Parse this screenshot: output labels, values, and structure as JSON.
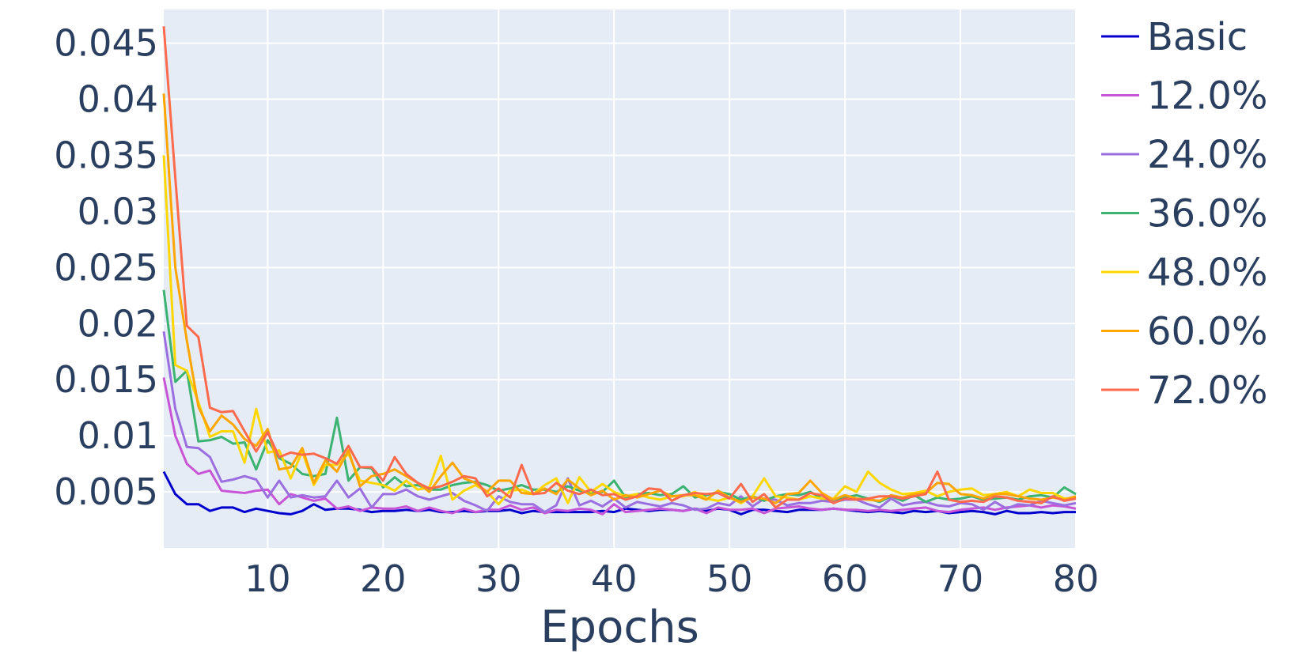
{
  "chart_data": {
    "type": "line",
    "title": "",
    "xlabel": "Epochs",
    "ylabel": "",
    "xlim": [
      1,
      80
    ],
    "ylim": [
      0.0,
      0.048
    ],
    "grid": true,
    "legend_position": "right",
    "background": "#e5ecf6",
    "grid_color": "#ffffff",
    "text_color": "#2a3f5f",
    "x_ticks": [
      10,
      20,
      30,
      40,
      50,
      60,
      70,
      80
    ],
    "x_tick_labels": [
      "10",
      "20",
      "30",
      "40",
      "50",
      "60",
      "70",
      "80"
    ],
    "y_ticks": [
      0.005,
      0.01,
      0.015,
      0.02,
      0.025,
      0.03,
      0.035,
      0.04,
      0.045
    ],
    "y_tick_labels": [
      "0.005",
      "0.01",
      "0.015",
      "0.02",
      "0.025",
      "0.03",
      "0.035",
      "0.04",
      "0.045"
    ],
    "x": [
      1,
      2,
      3,
      4,
      5,
      6,
      7,
      8,
      9,
      10,
      11,
      12,
      13,
      14,
      15,
      16,
      17,
      18,
      19,
      20,
      21,
      22,
      23,
      24,
      25,
      26,
      27,
      28,
      29,
      30,
      31,
      32,
      33,
      34,
      35,
      36,
      37,
      38,
      39,
      40,
      41,
      42,
      43,
      44,
      45,
      46,
      47,
      48,
      49,
      50,
      51,
      52,
      53,
      54,
      55,
      56,
      57,
      58,
      59,
      60,
      61,
      62,
      63,
      64,
      65,
      66,
      67,
      68,
      69,
      70,
      71,
      72,
      73,
      74,
      75,
      76,
      77,
      78,
      79,
      80
    ],
    "series": [
      {
        "name": "Basic",
        "color": "#0000cd",
        "values": [
          0.0068,
          0.0048,
          0.0039,
          0.0039,
          0.0033,
          0.0036,
          0.0036,
          0.0032,
          0.0035,
          0.0033,
          0.0031,
          0.003,
          0.0033,
          0.0039,
          0.0034,
          0.0035,
          0.0035,
          0.0034,
          0.0032,
          0.0033,
          0.0033,
          0.0034,
          0.0033,
          0.0034,
          0.0032,
          0.0032,
          0.0033,
          0.0032,
          0.0033,
          0.0033,
          0.0034,
          0.0031,
          0.0033,
          0.0032,
          0.0032,
          0.0032,
          0.0032,
          0.0032,
          0.0033,
          0.0032,
          0.0035,
          0.0034,
          0.0033,
          0.0034,
          0.0034,
          0.0033,
          0.0035,
          0.0033,
          0.0035,
          0.0034,
          0.003,
          0.0034,
          0.0034,
          0.0033,
          0.0032,
          0.0034,
          0.0034,
          0.0034,
          0.0035,
          0.0034,
          0.0033,
          0.0032,
          0.0033,
          0.0032,
          0.0031,
          0.0033,
          0.0032,
          0.0033,
          0.0031,
          0.0032,
          0.0033,
          0.0032,
          0.003,
          0.0033,
          0.0031,
          0.0031,
          0.0032,
          0.0031,
          0.0032,
          0.0032
        ]
      },
      {
        "name": "12.0%",
        "color": "#c855d6",
        "values": [
          0.0152,
          0.01,
          0.0075,
          0.0066,
          0.0069,
          0.0051,
          0.005,
          0.0049,
          0.0051,
          0.0052,
          0.0039,
          0.0048,
          0.0045,
          0.0042,
          0.0044,
          0.0035,
          0.0037,
          0.0033,
          0.0036,
          0.0035,
          0.0035,
          0.0037,
          0.0033,
          0.0036,
          0.0033,
          0.0031,
          0.0035,
          0.0032,
          0.0034,
          0.0034,
          0.0038,
          0.0034,
          0.0036,
          0.0031,
          0.0034,
          0.0033,
          0.0035,
          0.0034,
          0.003,
          0.0039,
          0.0032,
          0.0033,
          0.0034,
          0.0035,
          0.0034,
          0.0033,
          0.0035,
          0.0031,
          0.0036,
          0.0034,
          0.0034,
          0.0035,
          0.0031,
          0.0035,
          0.0036,
          0.0037,
          0.0035,
          0.0034,
          0.0035,
          0.0034,
          0.0034,
          0.0033,
          0.0034,
          0.0033,
          0.0034,
          0.0035,
          0.0036,
          0.0033,
          0.0032,
          0.0034,
          0.0035,
          0.0036,
          0.0034,
          0.0036,
          0.0037,
          0.0038,
          0.0036,
          0.0038,
          0.0037,
          0.0035
        ]
      },
      {
        "name": "24.0%",
        "color": "#9b6fe0",
        "values": [
          0.0193,
          0.0124,
          0.009,
          0.0089,
          0.0081,
          0.0059,
          0.0061,
          0.0064,
          0.0061,
          0.0045,
          0.006,
          0.0045,
          0.0047,
          0.0045,
          0.0046,
          0.006,
          0.0045,
          0.0053,
          0.0036,
          0.0048,
          0.0048,
          0.0052,
          0.0046,
          0.0043,
          0.0046,
          0.0049,
          0.0042,
          0.0038,
          0.0033,
          0.0046,
          0.0041,
          0.0039,
          0.0039,
          0.0032,
          0.0038,
          0.0062,
          0.0038,
          0.0042,
          0.0037,
          0.0044,
          0.0036,
          0.0041,
          0.0039,
          0.0037,
          0.004,
          0.0038,
          0.0034,
          0.0035,
          0.004,
          0.0038,
          0.0046,
          0.0037,
          0.0044,
          0.0043,
          0.0038,
          0.004,
          0.004,
          0.0042,
          0.0041,
          0.0043,
          0.0043,
          0.0039,
          0.0036,
          0.0044,
          0.0038,
          0.004,
          0.0041,
          0.0038,
          0.0037,
          0.004,
          0.0039,
          0.0034,
          0.0041,
          0.0035,
          0.0039,
          0.0038,
          0.0042,
          0.004,
          0.0038,
          0.004
        ]
      },
      {
        "name": "36.0%",
        "color": "#3cb371",
        "values": [
          0.023,
          0.0148,
          0.0158,
          0.0095,
          0.0096,
          0.0099,
          0.0093,
          0.0094,
          0.007,
          0.0096,
          0.008,
          0.0075,
          0.0066,
          0.0064,
          0.0066,
          0.0116,
          0.006,
          0.0072,
          0.0071,
          0.0054,
          0.0063,
          0.0055,
          0.0056,
          0.0052,
          0.0052,
          0.0056,
          0.0058,
          0.0059,
          0.0056,
          0.0051,
          0.0053,
          0.0056,
          0.0052,
          0.0052,
          0.005,
          0.0055,
          0.0051,
          0.0049,
          0.005,
          0.006,
          0.0045,
          0.0048,
          0.0049,
          0.0047,
          0.0048,
          0.0055,
          0.0045,
          0.0047,
          0.005,
          0.0048,
          0.0043,
          0.0046,
          0.0042,
          0.0046,
          0.0048,
          0.0047,
          0.005,
          0.0044,
          0.0043,
          0.0045,
          0.0047,
          0.0044,
          0.0041,
          0.0046,
          0.0042,
          0.0047,
          0.0041,
          0.0045,
          0.0043,
          0.0044,
          0.0046,
          0.0043,
          0.0044,
          0.0045,
          0.0043,
          0.0046,
          0.0047,
          0.0045,
          0.0054,
          0.0048
        ]
      },
      {
        "name": "48.0%",
        "color": "#ffd700",
        "values": [
          0.035,
          0.0163,
          0.0158,
          0.013,
          0.0099,
          0.0104,
          0.0104,
          0.0076,
          0.0124,
          0.0085,
          0.0087,
          0.0062,
          0.0086,
          0.0056,
          0.0074,
          0.0074,
          0.0084,
          0.006,
          0.0058,
          0.0056,
          0.0051,
          0.006,
          0.0052,
          0.0054,
          0.0082,
          0.0043,
          0.0051,
          0.0056,
          0.005,
          0.0039,
          0.0051,
          0.0052,
          0.0048,
          0.0056,
          0.0062,
          0.004,
          0.0063,
          0.005,
          0.0057,
          0.005,
          0.0046,
          0.0048,
          0.0045,
          0.0043,
          0.0046,
          0.0046,
          0.005,
          0.0044,
          0.0042,
          0.0045,
          0.004,
          0.0046,
          0.0062,
          0.0046,
          0.0045,
          0.0043,
          0.0046,
          0.0044,
          0.0044,
          0.0055,
          0.005,
          0.0068,
          0.0058,
          0.0052,
          0.0048,
          0.0049,
          0.0051,
          0.0046,
          0.005,
          0.0052,
          0.0053,
          0.0047,
          0.0048,
          0.005,
          0.0046,
          0.0052,
          0.0049,
          0.0049,
          0.0044,
          0.0045
        ]
      },
      {
        "name": "60.0%",
        "color": "#ffa500",
        "values": [
          0.0405,
          0.025,
          0.0185,
          0.0126,
          0.0104,
          0.0118,
          0.011,
          0.0097,
          0.0091,
          0.0106,
          0.007,
          0.0072,
          0.0089,
          0.0058,
          0.0078,
          0.0068,
          0.0087,
          0.0055,
          0.0064,
          0.0066,
          0.007,
          0.0064,
          0.0058,
          0.005,
          0.0064,
          0.0076,
          0.0062,
          0.0058,
          0.005,
          0.006,
          0.006,
          0.0049,
          0.0048,
          0.0053,
          0.0048,
          0.0061,
          0.0053,
          0.0047,
          0.0051,
          0.0043,
          0.0047,
          0.0045,
          0.0048,
          0.0051,
          0.0046,
          0.0047,
          0.0047,
          0.0043,
          0.0051,
          0.0045,
          0.0041,
          0.0045,
          0.0044,
          0.004,
          0.0048,
          0.0049,
          0.006,
          0.0049,
          0.0043,
          0.0047,
          0.0044,
          0.0043,
          0.0042,
          0.0047,
          0.0045,
          0.0048,
          0.0049,
          0.0058,
          0.0057,
          0.0048,
          0.0047,
          0.0044,
          0.0048,
          0.0048,
          0.0046,
          0.0044,
          0.0043,
          0.0045,
          0.0043,
          0.0046
        ]
      },
      {
        "name": "72.0%",
        "color": "#ff6a4d",
        "values": [
          0.0465,
          0.033,
          0.0198,
          0.0188,
          0.0125,
          0.0121,
          0.0122,
          0.0104,
          0.0086,
          0.0103,
          0.0081,
          0.0085,
          0.0083,
          0.0084,
          0.008,
          0.0075,
          0.0091,
          0.0072,
          0.0072,
          0.006,
          0.0081,
          0.0066,
          0.0058,
          0.0053,
          0.0055,
          0.0059,
          0.0064,
          0.0062,
          0.0046,
          0.0053,
          0.0045,
          0.0074,
          0.0048,
          0.0049,
          0.0058,
          0.0051,
          0.0048,
          0.0052,
          0.0047,
          0.0048,
          0.0043,
          0.0046,
          0.0053,
          0.0052,
          0.0042,
          0.0047,
          0.0049,
          0.0048,
          0.0049,
          0.0044,
          0.0057,
          0.0041,
          0.0048,
          0.0036,
          0.0043,
          0.0043,
          0.0049,
          0.0047,
          0.004,
          0.0044,
          0.0043,
          0.0044,
          0.0046,
          0.0046,
          0.0044,
          0.0046,
          0.0048,
          0.0068,
          0.0043,
          0.0041,
          0.0042,
          0.0041,
          0.0046,
          0.0045,
          0.0042,
          0.0041,
          0.004,
          0.0046,
          0.0042,
          0.0044
        ]
      }
    ]
  }
}
